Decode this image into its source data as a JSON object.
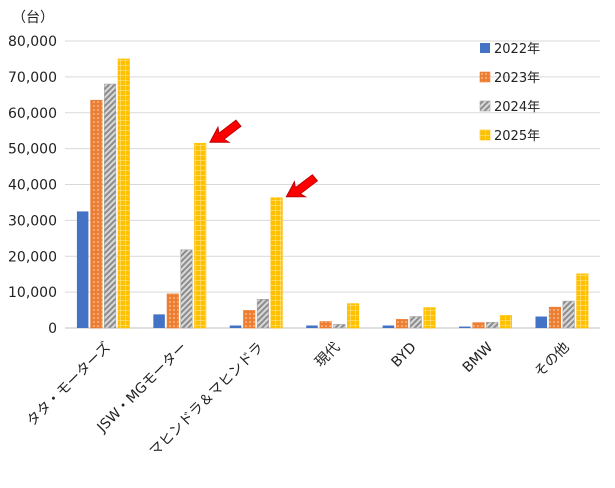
{
  "chart_data": {
    "type": "bar",
    "unit_label": "（台）",
    "categories": [
      "タタ・モーターズ",
      "JSW・MGモーター",
      "マヒンドラ＆マヒンドラ",
      "現代",
      "BYD",
      "BMW",
      "その他"
    ],
    "series": [
      {
        "name": "2022年",
        "color": "#4472C4",
        "pattern": "solid",
        "values": [
          32500,
          3800,
          700,
          700,
          700,
          400,
          3200
        ]
      },
      {
        "name": "2023年",
        "color": "#ED7D31",
        "pattern": "dots",
        "values": [
          63500,
          9500,
          4900,
          1800,
          2400,
          1500,
          5800
        ]
      },
      {
        "name": "2024年",
        "color": "#A5A5A5",
        "pattern": "diagonal",
        "values": [
          68000,
          21800,
          8000,
          1000,
          3200,
          1600,
          7500
        ]
      },
      {
        "name": "2025年",
        "color": "#FFC000",
        "pattern": "grid",
        "values": [
          75000,
          51500,
          36300,
          6800,
          5700,
          3500,
          15100
        ]
      }
    ],
    "ylim": [
      0,
      80000
    ],
    "yticks": [
      "0",
      "10,000",
      "20,000",
      "30,000",
      "40,000",
      "50,000",
      "60,000",
      "70,000",
      "80,000"
    ],
    "grid": true,
    "legend_position": "top-right",
    "annotations": [
      {
        "type": "arrow",
        "color": "#FF0000",
        "points_to": "JSW・MGモーター 2025年"
      },
      {
        "type": "arrow",
        "color": "#FF0000",
        "points_to": "マヒンドラ＆マヒンドラ 2025年"
      }
    ]
  }
}
